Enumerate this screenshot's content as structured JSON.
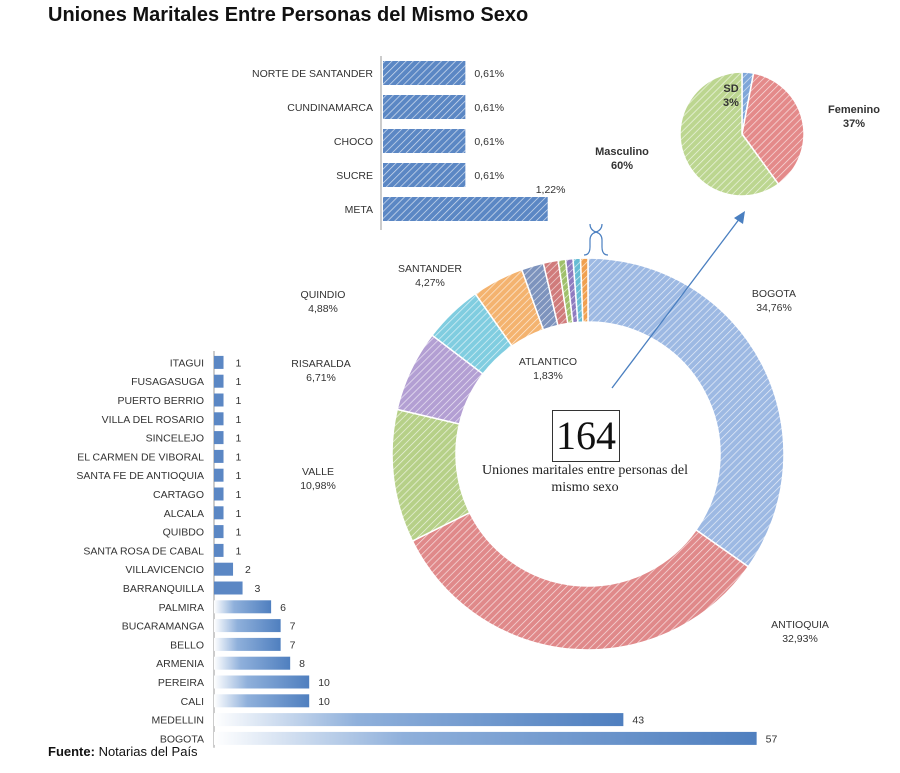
{
  "title": "Uniones Maritales Entre Personas del Mismo Sexo",
  "source_label": "Fuente:",
  "source_text": " Notarias del País",
  "center": {
    "value": "164",
    "caption": "Uniones maritales entre personas del mismo sexo"
  },
  "colors": {
    "bar": "#5b87c4",
    "bogota": "#9db9e3",
    "antioquia": "#e0898a",
    "valle": "#b6d088",
    "risaralda": "#b39fd3",
    "quindio": "#80cde0",
    "santander": "#f4b36f",
    "masculino": "#bcd690",
    "femenino": "#e48a8a",
    "sd": "#7ea6d8"
  },
  "chart_data": [
    {
      "type": "bar",
      "orientation": "horizontal",
      "categories": [
        "NORTE DE SANTANDER",
        "CUNDINAMARCA",
        "CHOCO",
        "SUCRE",
        "META"
      ],
      "values": [
        0.61,
        0.61,
        0.61,
        0.61,
        1.22
      ],
      "value_labels": [
        "0,61%",
        "0,61%",
        "0,61%",
        "0,61%",
        "1,22%"
      ]
    },
    {
      "type": "pie",
      "categories": [
        "SD",
        "Femenino",
        "Masculino"
      ],
      "values": [
        3,
        37,
        60
      ],
      "value_labels": [
        "3%",
        "37%",
        "60%"
      ]
    },
    {
      "type": "pie",
      "donut": true,
      "slices": [
        {
          "name": "BOGOTA",
          "value": 34.76,
          "label": "34,76%"
        },
        {
          "name": "ANTIOQUIA",
          "value": 32.93,
          "label": "32,93%"
        },
        {
          "name": "VALLE",
          "value": 10.98,
          "label": "10,98%"
        },
        {
          "name": "RISARALDA",
          "value": 6.71,
          "label": "6,71%"
        },
        {
          "name": "QUINDIO",
          "value": 4.88,
          "label": "4,88%"
        },
        {
          "name": "SANTANDER",
          "value": 4.27,
          "label": "4,27%"
        },
        {
          "name": "ATLANTICO",
          "value": 1.83,
          "label": "1,83%"
        },
        {
          "name": "META",
          "value": 1.22,
          "label": ""
        },
        {
          "name": "SUCRE",
          "value": 0.61,
          "label": ""
        },
        {
          "name": "CHOCO",
          "value": 0.61,
          "label": ""
        },
        {
          "name": "CUNDINAMARCA",
          "value": 0.61,
          "label": ""
        },
        {
          "name": "NORTE DE SANTANDER",
          "value": 0.61,
          "label": ""
        }
      ]
    },
    {
      "type": "bar",
      "orientation": "horizontal",
      "categories": [
        "ITAGUI",
        "FUSAGASUGA",
        "PUERTO BERRIO",
        "VILLA DEL ROSARIO",
        "SINCELEJO",
        "EL CARMEN DE VIBORAL",
        "SANTA FE DE ANTIOQUIA",
        "CARTAGO",
        "ALCALA",
        "QUIBDO",
        "SANTA ROSA DE CABAL",
        "VILLAVICENCIO",
        "BARRANQUILLA",
        "PALMIRA",
        "BUCARAMANGA",
        "BELLO",
        "ARMENIA",
        "PEREIRA",
        "CALI",
        "MEDELLIN",
        "BOGOTA"
      ],
      "values": [
        1,
        1,
        1,
        1,
        1,
        1,
        1,
        1,
        1,
        1,
        1,
        2,
        3,
        6,
        7,
        7,
        8,
        10,
        10,
        43,
        57
      ]
    }
  ]
}
